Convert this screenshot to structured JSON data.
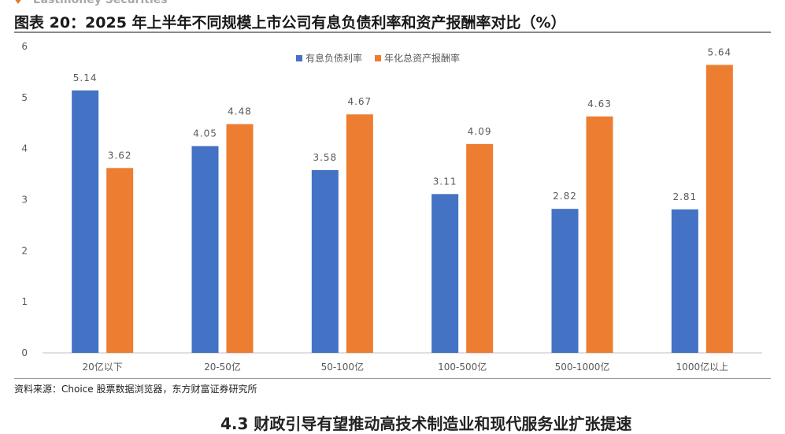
{
  "header": {
    "brand": "Eastmoney Securities"
  },
  "figure_title": "图表 20：2025 年上半年不同规模上市公司有息负债利率和资产报酬率对比（%）",
  "source_note": "资料来源：Choice 股票数据浏览器，东方财富证券研究所",
  "bottom_heading": "4.3 财政引导有望推动高技术制造业和现代服务业扩张提速",
  "colors": {
    "series1": "#4472c4",
    "series2": "#ed7d31",
    "axis": "#9a9a9a",
    "text": "#595959"
  },
  "chart_data": {
    "type": "bar",
    "title": "图表 20：2025 年上半年不同规模上市公司有息负债利率和资产报酬率对比（%）",
    "categories": [
      "20亿以下",
      "20-50亿",
      "50-100亿",
      "100-500亿",
      "500-1000亿",
      "1000亿以上"
    ],
    "series": [
      {
        "name": "有息负债利率",
        "values": [
          5.14,
          4.05,
          3.58,
          3.11,
          2.82,
          2.81
        ],
        "labels": [
          "5.14",
          "4.05",
          "3.58",
          "3.11",
          "2.82",
          "2.81"
        ]
      },
      {
        "name": "年化总资产报酬率",
        "values": [
          3.62,
          4.48,
          4.67,
          4.09,
          4.63,
          5.64
        ],
        "labels": [
          "3.62",
          "4.48",
          "4.67",
          "4.09",
          "4.63",
          "5.64"
        ]
      }
    ],
    "yticks": [
      "0",
      "1",
      "2",
      "3",
      "4",
      "5",
      "6"
    ],
    "ylim": [
      0,
      6
    ],
    "xlabel": "",
    "ylabel": "",
    "grid": false,
    "legend_position": "top-right"
  }
}
